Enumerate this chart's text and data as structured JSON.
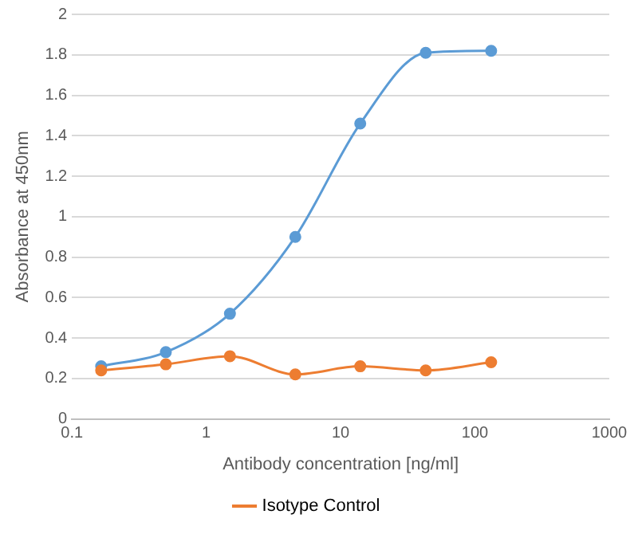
{
  "chart_data": {
    "type": "line",
    "xlabel": "Antibody concentration [ng/ml]",
    "ylabel": "Absorbance at 450nm",
    "x": [
      0.165,
      0.5,
      1.5,
      4.6,
      14,
      43,
      132
    ],
    "series": [
      {
        "color": "#5b9bd5",
        "values": [
          0.26,
          0.33,
          0.52,
          0.9,
          1.46,
          1.81,
          1.82
        ]
      },
      {
        "name": "Isotype Control",
        "color": "#ed7d31",
        "values": [
          0.24,
          0.27,
          0.31,
          0.22,
          0.26,
          0.24,
          0.28
        ]
      }
    ],
    "log": "x",
    "xlim": [
      0.1,
      1000
    ],
    "xticks": [
      0.1,
      1,
      10,
      100,
      1000
    ],
    "ylim": [
      0,
      2
    ],
    "yticks": [
      0,
      0.2,
      0.4,
      0.6,
      0.8,
      1,
      1.2,
      1.4,
      1.6,
      1.8,
      2
    ],
    "grid": "y",
    "legend": "bottom",
    "marker": "circle",
    "line_style": "solid"
  }
}
